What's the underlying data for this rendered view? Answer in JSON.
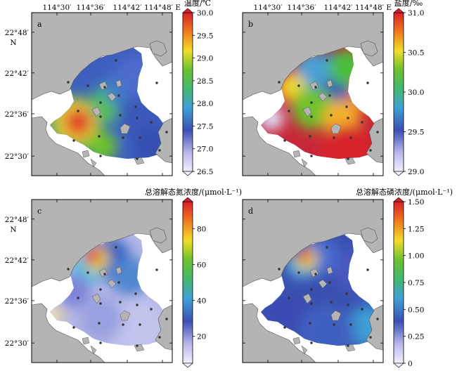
{
  "lon_labels": [
    "114°30′",
    "114°36′",
    "114°42′",
    "114°48′ E"
  ],
  "lat_labels": [
    "22°48′",
    "22°42′",
    "22°36′",
    "22°30′"
  ],
  "north_label": "N",
  "colors": {
    "land": "#b4b4b4",
    "sea": "#ffffff",
    "station": "#333333"
  },
  "panels": [
    {
      "letter": "a",
      "colorbar_title": "温度/℃",
      "colorbar_ticks": [
        "30.0",
        "29.5",
        "29.0",
        "28.5",
        "28.0",
        "27.5",
        "27.0",
        "26.5"
      ],
      "show_lat_labels": true,
      "show_lon_labels": true
    },
    {
      "letter": "b",
      "colorbar_title": "盐度/‰",
      "colorbar_ticks": [
        "31.0",
        "30.5",
        "30.0",
        "29.5",
        "29.0"
      ],
      "show_lat_labels": false,
      "show_lon_labels": true
    },
    {
      "letter": "c",
      "colorbar_title": "总溶解态氮浓度/(μmol·L⁻¹)",
      "colorbar_ticks": [
        "80",
        "60",
        "40",
        "20"
      ],
      "show_lat_labels": true,
      "show_lon_labels": false
    },
    {
      "letter": "d",
      "colorbar_title": "总溶解态磷浓度/(μmol·L⁻¹)",
      "colorbar_ticks": [
        "1.50",
        "1.25",
        "1.00",
        "0.75",
        "0.50",
        "0.25",
        "0"
      ],
      "show_lat_labels": false,
      "show_lon_labels": false
    }
  ]
}
